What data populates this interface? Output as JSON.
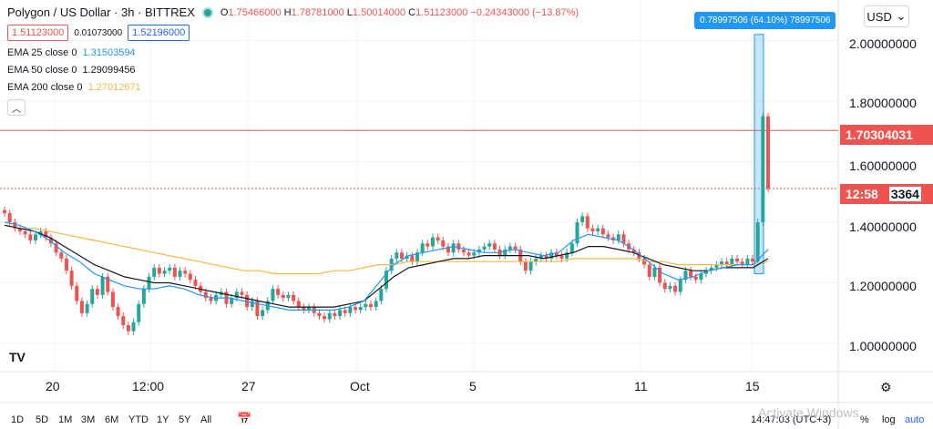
{
  "header": {
    "symbol_title": "Polygon / US Dollar · 3h · BITTREX",
    "ohlc": {
      "o_label": "O",
      "o": "1.75466000",
      "h_label": "H",
      "h": "1.78781000",
      "l_label": "L",
      "l": "1.50014000",
      "c_label": "C",
      "c": "1.51123000",
      "change": "−0.24343000 (−13.87%)"
    },
    "sell_price": "1.51123000",
    "spread": "0.01073000",
    "buy_price": "1.52196000",
    "emas": [
      {
        "label": "EMA 25 close 0",
        "value": "1.31503594",
        "color": "#2196f3"
      },
      {
        "label": "EMA 50 close 0",
        "value": "1.29099456",
        "color": "#131722"
      },
      {
        "label": "EMA 200 close 0",
        "value": "1.27012671",
        "color": "#f5b942"
      }
    ],
    "collapse_icon": "chevron-up-icon"
  },
  "currency": {
    "label": "USD",
    "icon": "chevron-down-icon"
  },
  "measure_tool": {
    "label": "0.78997506 (64.10%) 78997506"
  },
  "price_axis": {
    "labels": [
      "2.00000000",
      "1.80000000",
      "1.60000000",
      "1.40000000",
      "1.20000000",
      "1.00000000"
    ],
    "tag_red": "1.70304031",
    "tag_countdown": "12:58",
    "tag_countdown_suffix": "3364"
  },
  "time_axis": {
    "labels": [
      "20",
      "12:00",
      "27",
      "Oct",
      "5",
      "11",
      "15"
    ]
  },
  "bottom_bar": {
    "timeframes": [
      "1D",
      "5D",
      "1M",
      "3M",
      "6M",
      "YTD",
      "1Y",
      "5Y",
      "All"
    ],
    "calendar_icon": "calendar-range-icon",
    "time": "14:47:03 (UTC+3)",
    "percent": "%",
    "log": "log",
    "auto": "auto",
    "watermark": "Activate Windows"
  },
  "settings_icon": "gear-icon",
  "logo": "TV",
  "colors": {
    "up": "#26a69a",
    "down": "#ef5350",
    "ema25": "#2196f3",
    "ema50": "#131722",
    "ema200": "#f5b942",
    "accent": "#2962ff",
    "price_line": "#ef5350"
  },
  "chart_data": {
    "type": "candlestick",
    "title": "Polygon / US Dollar · 3h · BITTREX",
    "ylim": [
      0.92,
      2.08
    ],
    "y_ticks": [
      1.0,
      1.2,
      1.4,
      1.6,
      1.8,
      2.0
    ],
    "x_ticks": [
      "20",
      "12:00",
      "27",
      "Oct",
      "5",
      "11",
      "15"
    ],
    "grid": true,
    "candles_close": [
      1.43,
      1.4,
      1.38,
      1.37,
      1.36,
      1.34,
      1.36,
      1.37,
      1.35,
      1.33,
      1.3,
      1.28,
      1.24,
      1.19,
      1.14,
      1.1,
      1.13,
      1.18,
      1.16,
      1.22,
      1.17,
      1.12,
      1.09,
      1.06,
      1.04,
      1.07,
      1.13,
      1.18,
      1.22,
      1.25,
      1.23,
      1.24,
      1.25,
      1.22,
      1.24,
      1.23,
      1.21,
      1.19,
      1.17,
      1.15,
      1.14,
      1.16,
      1.17,
      1.13,
      1.15,
      1.17,
      1.16,
      1.12,
      1.14,
      1.09,
      1.11,
      1.14,
      1.18,
      1.16,
      1.15,
      1.16,
      1.14,
      1.12,
      1.11,
      1.12,
      1.1,
      1.09,
      1.08,
      1.1,
      1.09,
      1.11,
      1.1,
      1.12,
      1.11,
      1.12,
      1.13,
      1.12,
      1.14,
      1.18,
      1.24,
      1.28,
      1.3,
      1.28,
      1.29,
      1.27,
      1.3,
      1.33,
      1.32,
      1.35,
      1.34,
      1.32,
      1.3,
      1.33,
      1.31,
      1.3,
      1.29,
      1.3,
      1.31,
      1.32,
      1.33,
      1.31,
      1.29,
      1.31,
      1.32,
      1.31,
      1.27,
      1.24,
      1.27,
      1.28,
      1.29,
      1.28,
      1.3,
      1.29,
      1.28,
      1.3,
      1.33,
      1.4,
      1.42,
      1.38,
      1.37,
      1.38,
      1.36,
      1.35,
      1.34,
      1.36,
      1.33,
      1.31,
      1.3,
      1.28,
      1.26,
      1.22,
      1.25,
      1.2,
      1.18,
      1.19,
      1.17,
      1.21,
      1.24,
      1.22,
      1.21,
      1.23,
      1.24,
      1.25,
      1.26,
      1.27,
      1.26,
      1.28,
      1.27,
      1.26,
      1.28,
      1.27,
      1.4,
      1.75,
      1.51
    ],
    "ema25": [
      1.4,
      1.39,
      1.37,
      1.34,
      1.3,
      1.27,
      1.23,
      1.21,
      1.19,
      1.18,
      1.18,
      1.19,
      1.18,
      1.16,
      1.15,
      1.15,
      1.14,
      1.13,
      1.12,
      1.11,
      1.11,
      1.11,
      1.11,
      1.12,
      1.14,
      1.2,
      1.26,
      1.29,
      1.3,
      1.31,
      1.32,
      1.31,
      1.3,
      1.3,
      1.31,
      1.3,
      1.29,
      1.3,
      1.34,
      1.36,
      1.35,
      1.34,
      1.31,
      1.27,
      1.23,
      1.21,
      1.22,
      1.24,
      1.25,
      1.26,
      1.26,
      1.31
    ],
    "ema50": [
      1.39,
      1.38,
      1.37,
      1.35,
      1.32,
      1.29,
      1.26,
      1.24,
      1.22,
      1.21,
      1.2,
      1.2,
      1.19,
      1.18,
      1.17,
      1.16,
      1.15,
      1.14,
      1.13,
      1.12,
      1.12,
      1.12,
      1.12,
      1.13,
      1.14,
      1.18,
      1.22,
      1.25,
      1.26,
      1.27,
      1.28,
      1.28,
      1.29,
      1.29,
      1.29,
      1.29,
      1.28,
      1.29,
      1.3,
      1.32,
      1.32,
      1.31,
      1.3,
      1.28,
      1.26,
      1.25,
      1.24,
      1.24,
      1.25,
      1.25,
      1.25,
      1.28
    ],
    "ema200": [
      1.39,
      1.38,
      1.38,
      1.37,
      1.36,
      1.35,
      1.34,
      1.33,
      1.32,
      1.31,
      1.3,
      1.29,
      1.28,
      1.27,
      1.26,
      1.25,
      1.24,
      1.24,
      1.23,
      1.23,
      1.23,
      1.23,
      1.24,
      1.24,
      1.25,
      1.26,
      1.26,
      1.27,
      1.27,
      1.27,
      1.27,
      1.27,
      1.27,
      1.27,
      1.27,
      1.27,
      1.27,
      1.27,
      1.28,
      1.28,
      1.28,
      1.28,
      1.28,
      1.27,
      1.27,
      1.26,
      1.26,
      1.26,
      1.26,
      1.26,
      1.26,
      1.27
    ],
    "measure_range": [
      1.23,
      2.02
    ],
    "horizontal_lines": [
      1.70304031,
      1.51123
    ]
  }
}
